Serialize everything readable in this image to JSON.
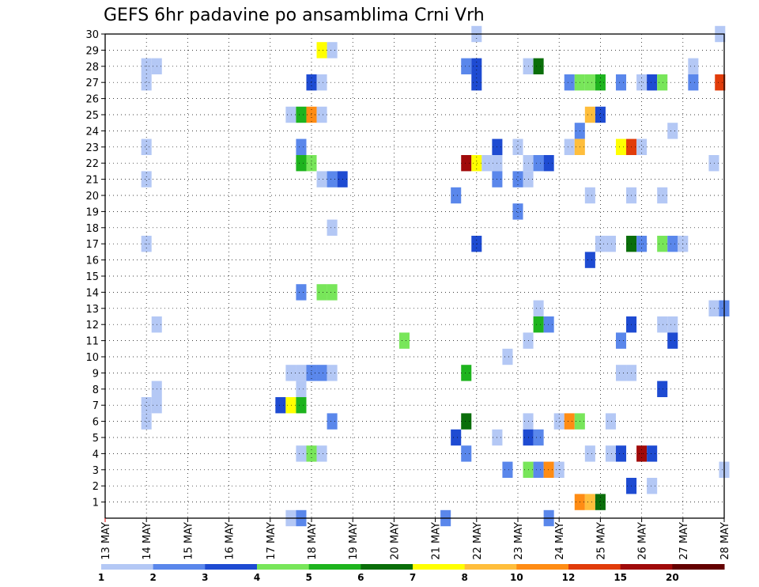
{
  "chart_data": {
    "type": "heatmap",
    "title": "GEFS 6hr padavine po ansamblima Crni Vrh",
    "x_tick_labels": [
      "13 MAY",
      "14 MAY",
      "15 MAY",
      "16 MAY",
      "17 MAY",
      "18 MAY",
      "19 MAY",
      "20 MAY",
      "21 MAY",
      "22 MAY",
      "23 MAY",
      "24 MAY",
      "25 MAY",
      "26 MAY",
      "27 MAY",
      "28 MAY"
    ],
    "y_tick_labels": [
      "1",
      "2",
      "3",
      "4",
      "5",
      "6",
      "7",
      "8",
      "9",
      "10",
      "11",
      "12",
      "13",
      "14",
      "15",
      "16",
      "17",
      "18",
      "19",
      "20",
      "21",
      "22",
      "23",
      "24",
      "25",
      "26",
      "27",
      "28",
      "29",
      "30"
    ],
    "x_range_days": [
      13,
      28
    ],
    "y_range": [
      0,
      30
    ],
    "grid": true,
    "colorbar": {
      "labels": [
        "1",
        "2",
        "3",
        "4",
        "5",
        "6",
        "7",
        "8",
        "10",
        "12",
        "15",
        "20"
      ],
      "colors": [
        "#b4c8f5",
        "#5a87eb",
        "#1e4bd2",
        "#78e65a",
        "#1eb41e",
        "#0a6e0a",
        "#ffff00",
        "#ffbe3c",
        "#ff8c14",
        "#e13c0a",
        "#a00a0a",
        "#640000"
      ]
    },
    "cells": [
      {
        "member": 30,
        "day": 22.0,
        "color_index": 0
      },
      {
        "member": 30,
        "day": 27.9,
        "color_index": 0
      },
      {
        "member": 29,
        "day": 18.25,
        "color_index": 6
      },
      {
        "member": 29,
        "day": 18.5,
        "color_index": 0
      },
      {
        "member": 28,
        "day": 14.0,
        "color_index": 0
      },
      {
        "member": 28,
        "day": 14.25,
        "color_index": 0
      },
      {
        "member": 28,
        "day": 21.75,
        "color_index": 1
      },
      {
        "member": 28,
        "day": 22.0,
        "color_index": 2
      },
      {
        "member": 28,
        "day": 23.25,
        "color_index": 0
      },
      {
        "member": 28,
        "day": 23.5,
        "color_index": 5
      },
      {
        "member": 28,
        "day": 27.25,
        "color_index": 0
      },
      {
        "member": 27,
        "day": 14.0,
        "color_index": 0
      },
      {
        "member": 27,
        "day": 18.0,
        "color_index": 2
      },
      {
        "member": 27,
        "day": 18.25,
        "color_index": 0
      },
      {
        "member": 27,
        "day": 22.0,
        "color_index": 2
      },
      {
        "member": 27,
        "day": 24.25,
        "color_index": 1
      },
      {
        "member": 27,
        "day": 24.5,
        "color_index": 3
      },
      {
        "member": 27,
        "day": 24.75,
        "color_index": 3
      },
      {
        "member": 27,
        "day": 25.0,
        "color_index": 4
      },
      {
        "member": 27,
        "day": 25.5,
        "color_index": 1
      },
      {
        "member": 27,
        "day": 26.0,
        "color_index": 0
      },
      {
        "member": 27,
        "day": 26.25,
        "color_index": 2
      },
      {
        "member": 27,
        "day": 26.5,
        "color_index": 3
      },
      {
        "member": 27,
        "day": 27.25,
        "color_index": 1
      },
      {
        "member": 27,
        "day": 27.9,
        "color_index": 9
      },
      {
        "member": 25,
        "day": 17.5,
        "color_index": 0
      },
      {
        "member": 25,
        "day": 17.75,
        "color_index": 4
      },
      {
        "member": 25,
        "day": 18.0,
        "color_index": 8
      },
      {
        "member": 25,
        "day": 18.25,
        "color_index": 0
      },
      {
        "member": 25,
        "day": 24.75,
        "color_index": 7
      },
      {
        "member": 25,
        "day": 25.0,
        "color_index": 2
      },
      {
        "member": 24,
        "day": 24.5,
        "color_index": 1
      },
      {
        "member": 24,
        "day": 26.75,
        "color_index": 0
      },
      {
        "member": 23,
        "day": 14.0,
        "color_index": 0
      },
      {
        "member": 23,
        "day": 17.75,
        "color_index": 1
      },
      {
        "member": 23,
        "day": 22.5,
        "color_index": 2
      },
      {
        "member": 23,
        "day": 23.0,
        "color_index": 0
      },
      {
        "member": 23,
        "day": 24.25,
        "color_index": 0
      },
      {
        "member": 23,
        "day": 24.5,
        "color_index": 7
      },
      {
        "member": 23,
        "day": 25.5,
        "color_index": 6
      },
      {
        "member": 23,
        "day": 25.75,
        "color_index": 9
      },
      {
        "member": 23,
        "day": 26.0,
        "color_index": 0
      },
      {
        "member": 22,
        "day": 17.75,
        "color_index": 4
      },
      {
        "member": 22,
        "day": 18.0,
        "color_index": 3
      },
      {
        "member": 22,
        "day": 21.75,
        "color_index": 10
      },
      {
        "member": 22,
        "day": 22.0,
        "color_index": 6
      },
      {
        "member": 22,
        "day": 22.25,
        "color_index": 0
      },
      {
        "member": 22,
        "day": 22.5,
        "color_index": 0
      },
      {
        "member": 22,
        "day": 23.25,
        "color_index": 0
      },
      {
        "member": 22,
        "day": 23.5,
        "color_index": 1
      },
      {
        "member": 22,
        "day": 23.75,
        "color_index": 2
      },
      {
        "member": 22,
        "day": 27.75,
        "color_index": 0
      },
      {
        "member": 21,
        "day": 14.0,
        "color_index": 0
      },
      {
        "member": 21,
        "day": 18.25,
        "color_index": 0
      },
      {
        "member": 21,
        "day": 18.5,
        "color_index": 1
      },
      {
        "member": 21,
        "day": 18.75,
        "color_index": 2
      },
      {
        "member": 21,
        "day": 22.5,
        "color_index": 1
      },
      {
        "member": 21,
        "day": 23.0,
        "color_index": 1
      },
      {
        "member": 21,
        "day": 23.25,
        "color_index": 0
      },
      {
        "member": 20,
        "day": 21.5,
        "color_index": 1
      },
      {
        "member": 20,
        "day": 24.75,
        "color_index": 0
      },
      {
        "member": 20,
        "day": 25.75,
        "color_index": 0
      },
      {
        "member": 20,
        "day": 26.5,
        "color_index": 0
      },
      {
        "member": 19,
        "day": 23.0,
        "color_index": 1
      },
      {
        "member": 18,
        "day": 18.5,
        "color_index": 0
      },
      {
        "member": 17,
        "day": 14.0,
        "color_index": 0
      },
      {
        "member": 17,
        "day": 22.0,
        "color_index": 2
      },
      {
        "member": 17,
        "day": 25.0,
        "color_index": 0
      },
      {
        "member": 17,
        "day": 25.25,
        "color_index": 0
      },
      {
        "member": 17,
        "day": 25.75,
        "color_index": 5
      },
      {
        "member": 17,
        "day": 26.0,
        "color_index": 1
      },
      {
        "member": 17,
        "day": 26.5,
        "color_index": 3
      },
      {
        "member": 17,
        "day": 26.75,
        "color_index": 1
      },
      {
        "member": 17,
        "day": 27.0,
        "color_index": 0
      },
      {
        "member": 16,
        "day": 24.75,
        "color_index": 2
      },
      {
        "member": 14,
        "day": 17.75,
        "color_index": 1
      },
      {
        "member": 14,
        "day": 18.25,
        "color_index": 3
      },
      {
        "member": 14,
        "day": 18.5,
        "color_index": 3
      },
      {
        "member": 13,
        "day": 23.5,
        "color_index": 0
      },
      {
        "member": 13,
        "day": 27.75,
        "color_index": 0
      },
      {
        "member": 13,
        "day": 28.0,
        "color_index": 1
      },
      {
        "member": 12,
        "day": 14.25,
        "color_index": 0
      },
      {
        "member": 12,
        "day": 23.5,
        "color_index": 4
      },
      {
        "member": 12,
        "day": 23.75,
        "color_index": 1
      },
      {
        "member": 12,
        "day": 25.75,
        "color_index": 2
      },
      {
        "member": 12,
        "day": 26.5,
        "color_index": 0
      },
      {
        "member": 12,
        "day": 26.75,
        "color_index": 0
      },
      {
        "member": 11,
        "day": 20.25,
        "color_index": 3
      },
      {
        "member": 11,
        "day": 23.25,
        "color_index": 0
      },
      {
        "member": 11,
        "day": 25.5,
        "color_index": 1
      },
      {
        "member": 11,
        "day": 26.75,
        "color_index": 2
      },
      {
        "member": 10,
        "day": 22.75,
        "color_index": 0
      },
      {
        "member": 9,
        "day": 17.5,
        "color_index": 0
      },
      {
        "member": 9,
        "day": 17.75,
        "color_index": 0
      },
      {
        "member": 9,
        "day": 18.0,
        "color_index": 1
      },
      {
        "member": 9,
        "day": 18.25,
        "color_index": 1
      },
      {
        "member": 9,
        "day": 18.5,
        "color_index": 0
      },
      {
        "member": 9,
        "day": 21.75,
        "color_index": 4
      },
      {
        "member": 9,
        "day": 25.5,
        "color_index": 0
      },
      {
        "member": 9,
        "day": 25.75,
        "color_index": 0
      },
      {
        "member": 8,
        "day": 14.25,
        "color_index": 0
      },
      {
        "member": 8,
        "day": 17.75,
        "color_index": 0
      },
      {
        "member": 8,
        "day": 26.5,
        "color_index": 2
      },
      {
        "member": 7,
        "day": 14.0,
        "color_index": 0
      },
      {
        "member": 7,
        "day": 14.25,
        "color_index": 0
      },
      {
        "member": 7,
        "day": 17.25,
        "color_index": 2
      },
      {
        "member": 7,
        "day": 17.5,
        "color_index": 6
      },
      {
        "member": 7,
        "day": 17.75,
        "color_index": 4
      },
      {
        "member": 6,
        "day": 14.0,
        "color_index": 0
      },
      {
        "member": 6,
        "day": 18.5,
        "color_index": 1
      },
      {
        "member": 6,
        "day": 21.75,
        "color_index": 5
      },
      {
        "member": 6,
        "day": 23.25,
        "color_index": 0
      },
      {
        "member": 6,
        "day": 24.0,
        "color_index": 0
      },
      {
        "member": 6,
        "day": 24.25,
        "color_index": 8
      },
      {
        "member": 6,
        "day": 24.5,
        "color_index": 3
      },
      {
        "member": 6,
        "day": 25.25,
        "color_index": 0
      },
      {
        "member": 5,
        "day": 21.5,
        "color_index": 2
      },
      {
        "member": 5,
        "day": 22.5,
        "color_index": 0
      },
      {
        "member": 5,
        "day": 23.25,
        "color_index": 2
      },
      {
        "member": 5,
        "day": 23.5,
        "color_index": 1
      },
      {
        "member": 4,
        "day": 17.75,
        "color_index": 0
      },
      {
        "member": 4,
        "day": 18.0,
        "color_index": 3
      },
      {
        "member": 4,
        "day": 18.25,
        "color_index": 0
      },
      {
        "member": 4,
        "day": 21.75,
        "color_index": 1
      },
      {
        "member": 4,
        "day": 24.75,
        "color_index": 0
      },
      {
        "member": 4,
        "day": 25.25,
        "color_index": 0
      },
      {
        "member": 4,
        "day": 25.5,
        "color_index": 2
      },
      {
        "member": 4,
        "day": 26.0,
        "color_index": 10
      },
      {
        "member": 4,
        "day": 26.25,
        "color_index": 2
      },
      {
        "member": 3,
        "day": 22.75,
        "color_index": 1
      },
      {
        "member": 3,
        "day": 23.25,
        "color_index": 3
      },
      {
        "member": 3,
        "day": 23.5,
        "color_index": 1
      },
      {
        "member": 3,
        "day": 23.75,
        "color_index": 8
      },
      {
        "member": 3,
        "day": 24.0,
        "color_index": 0
      },
      {
        "member": 3,
        "day": 28.0,
        "color_index": 0
      },
      {
        "member": 2,
        "day": 25.75,
        "color_index": 2
      },
      {
        "member": 2,
        "day": 26.25,
        "color_index": 0
      },
      {
        "member": 1,
        "day": 24.5,
        "color_index": 8
      },
      {
        "member": 1,
        "day": 24.75,
        "color_index": 7
      },
      {
        "member": 1,
        "day": 25.0,
        "color_index": 5
      },
      {
        "member": 0,
        "day": 17.5,
        "color_index": 0
      },
      {
        "member": 0,
        "day": 17.75,
        "color_index": 1
      },
      {
        "member": 0,
        "day": 21.25,
        "color_index": 1
      },
      {
        "member": 0,
        "day": 23.75,
        "color_index": 1
      }
    ]
  }
}
